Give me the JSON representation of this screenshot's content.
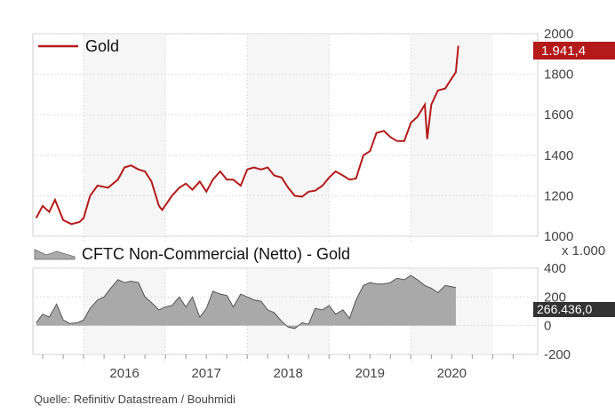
{
  "chart_data": [
    {
      "type": "line",
      "legend": "Gold",
      "color": "#b41a1a",
      "last_value_label": "1.941,4",
      "ylim": [
        1000,
        2000
      ],
      "yticks": [
        "1000",
        "1200",
        "1400",
        "1600",
        "1800",
        "2000"
      ],
      "ytick_values": [
        1000,
        1200,
        1400,
        1600,
        1800,
        2000
      ],
      "x": [
        2015.42,
        2015.5,
        2015.58,
        2015.65,
        2015.75,
        2015.85,
        2015.95,
        2016.0,
        2016.08,
        2016.17,
        2016.3,
        2016.42,
        2016.5,
        2016.58,
        2016.67,
        2016.75,
        2016.83,
        2016.92,
        2016.96,
        2017.08,
        2017.17,
        2017.25,
        2017.33,
        2017.42,
        2017.5,
        2017.58,
        2017.67,
        2017.75,
        2017.83,
        2017.92,
        2018.0,
        2018.08,
        2018.17,
        2018.25,
        2018.33,
        2018.42,
        2018.5,
        2018.58,
        2018.67,
        2018.75,
        2018.83,
        2018.92,
        2019.0,
        2019.08,
        2019.17,
        2019.25,
        2019.33,
        2019.42,
        2019.5,
        2019.58,
        2019.67,
        2019.75,
        2019.83,
        2019.92,
        2020.0,
        2020.08,
        2020.17,
        2020.2,
        2020.25,
        2020.33,
        2020.42,
        2020.5,
        2020.55,
        2020.58
      ],
      "values": [
        1090,
        1150,
        1120,
        1180,
        1080,
        1060,
        1070,
        1090,
        1200,
        1250,
        1240,
        1280,
        1340,
        1350,
        1330,
        1320,
        1270,
        1150,
        1130,
        1200,
        1240,
        1260,
        1230,
        1270,
        1220,
        1280,
        1320,
        1280,
        1280,
        1250,
        1330,
        1340,
        1330,
        1340,
        1300,
        1290,
        1240,
        1200,
        1195,
        1220,
        1225,
        1250,
        1290,
        1320,
        1300,
        1280,
        1285,
        1400,
        1420,
        1510,
        1520,
        1490,
        1470,
        1470,
        1560,
        1590,
        1650,
        1480,
        1650,
        1720,
        1730,
        1780,
        1810,
        1941
      ]
    },
    {
      "type": "area",
      "legend": "CFTC Non-Commercial (Netto) - Gold",
      "color": "#a9a9a9",
      "unit_label": "x 1.000",
      "last_value_label": "266.436,0",
      "ylim": [
        -200,
        400
      ],
      "yticks": [
        "-200",
        "0",
        "200",
        "400"
      ],
      "ytick_values": [
        -200,
        0,
        200,
        400
      ],
      "x": [
        2015.42,
        2015.5,
        2015.58,
        2015.67,
        2015.75,
        2015.83,
        2015.92,
        2016.0,
        2016.08,
        2016.17,
        2016.25,
        2016.33,
        2016.42,
        2016.5,
        2016.58,
        2016.67,
        2016.75,
        2016.83,
        2016.92,
        2017.0,
        2017.08,
        2017.17,
        2017.25,
        2017.33,
        2017.42,
        2017.5,
        2017.58,
        2017.67,
        2017.75,
        2017.83,
        2017.92,
        2018.0,
        2018.08,
        2018.17,
        2018.25,
        2018.33,
        2018.42,
        2018.5,
        2018.58,
        2018.67,
        2018.75,
        2018.83,
        2018.92,
        2019.0,
        2019.08,
        2019.17,
        2019.25,
        2019.33,
        2019.42,
        2019.5,
        2019.58,
        2019.67,
        2019.75,
        2019.83,
        2019.92,
        2020.0,
        2020.08,
        2020.17,
        2020.25,
        2020.33,
        2020.42,
        2020.55
      ],
      "values": [
        20,
        80,
        60,
        150,
        40,
        15,
        20,
        40,
        120,
        180,
        200,
        260,
        320,
        300,
        310,
        300,
        200,
        160,
        110,
        130,
        140,
        200,
        130,
        200,
        60,
        120,
        240,
        220,
        210,
        130,
        220,
        200,
        180,
        170,
        110,
        90,
        30,
        -10,
        -20,
        20,
        10,
        120,
        110,
        140,
        80,
        110,
        50,
        180,
        280,
        300,
        290,
        290,
        300,
        330,
        320,
        350,
        320,
        280,
        260,
        230,
        280,
        266
      ]
    }
  ],
  "x_axis": {
    "labels": [
      "2016",
      "2017",
      "2018",
      "2019",
      "2020"
    ],
    "positions": [
      2016.5,
      2017.5,
      2018.5,
      2019.5,
      2020.5
    ],
    "range": [
      2015.38,
      2021.55
    ]
  },
  "source": "Quelle: Refinitiv Datastream / Bouhmidi"
}
